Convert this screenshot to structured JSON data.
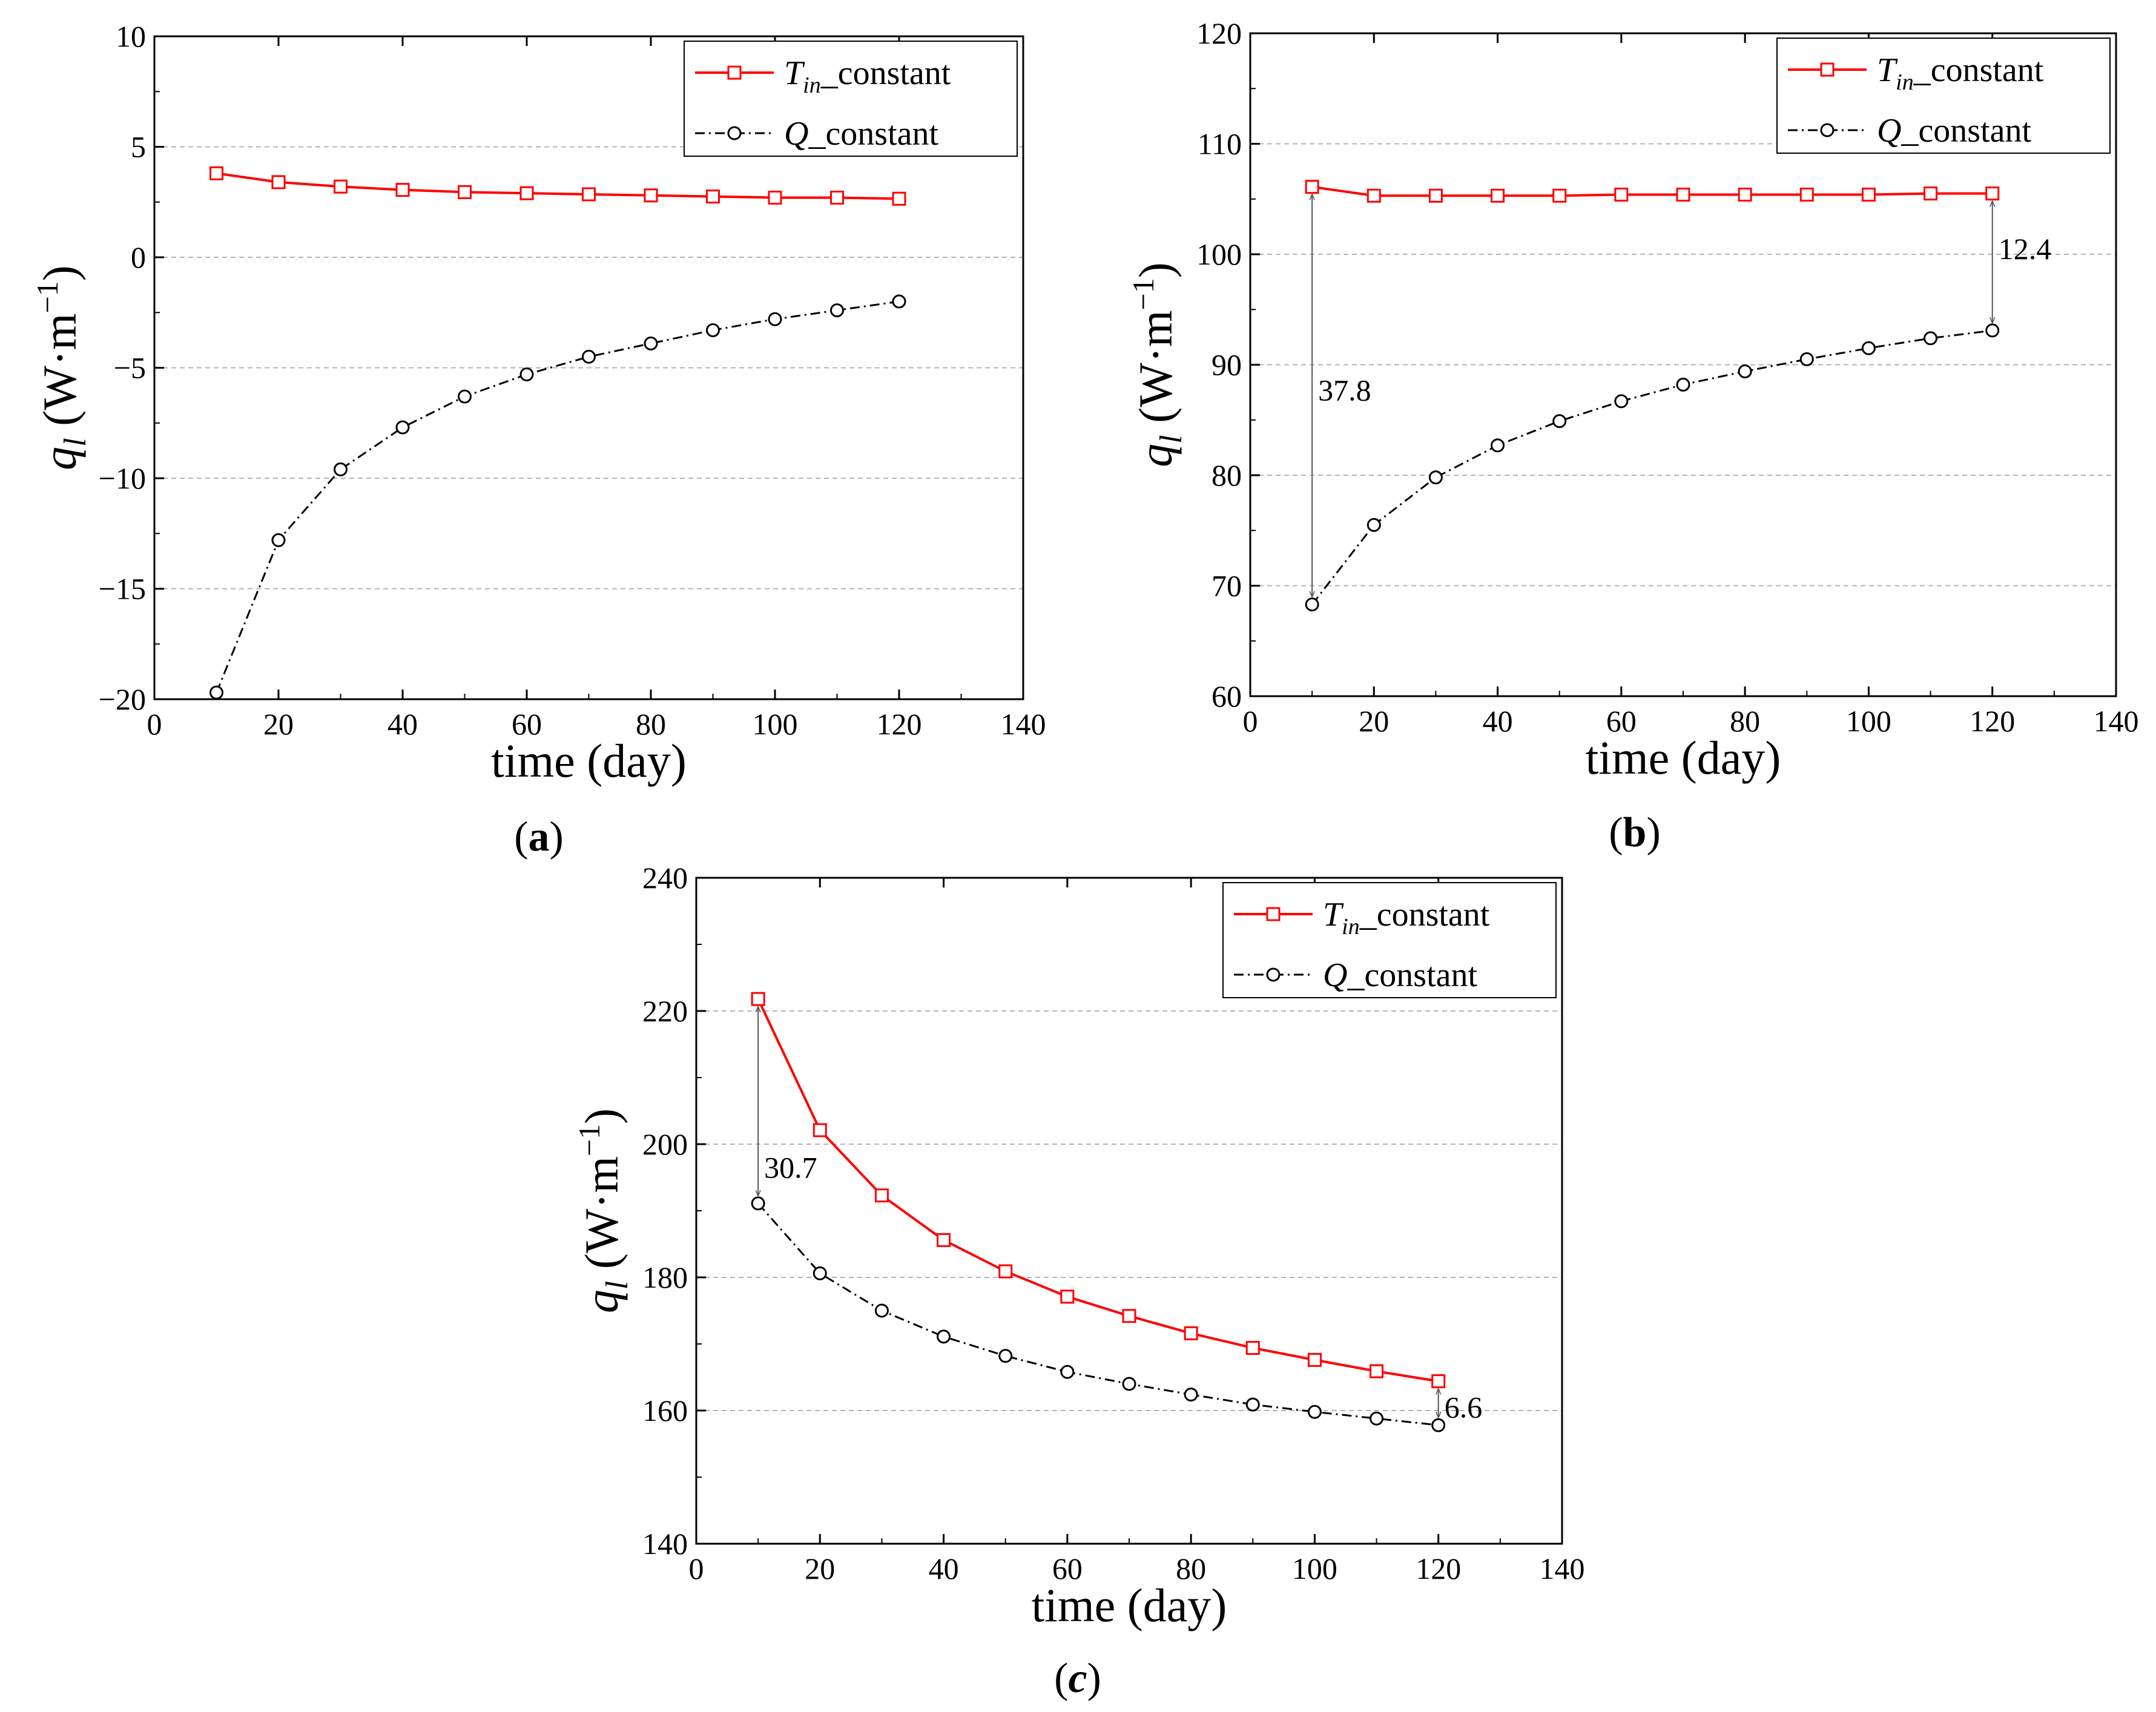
{
  "chart_data": [
    {
      "type": "line",
      "panel": "a",
      "caption": {
        "open": "(",
        "letter": "a",
        "close": ")"
      },
      "xlabel": "time (day)",
      "ylabel": {
        "symbol": "q",
        "subscript": "l",
        "unit": " (W·m",
        "exponent": "−1",
        "close": ")"
      },
      "xlim": [
        0,
        140
      ],
      "ylim": [
        -20,
        10
      ],
      "xticks": [
        0,
        20,
        40,
        60,
        80,
        100,
        120,
        140
      ],
      "yticks": [
        10,
        5,
        0,
        -5,
        -10,
        -15,
        -20
      ],
      "ytick_labels": [
        "10",
        "5",
        "0",
        "−5",
        "−10",
        "−15",
        "−20"
      ],
      "grid": "horizontal dashed",
      "legend_position": "top-right",
      "x": [
        10,
        20,
        30,
        40,
        50,
        60,
        70,
        80,
        90,
        100,
        110,
        120
      ],
      "series": [
        {
          "name": "T_in_constant",
          "label": {
            "italic": "T",
            "subscript": "in",
            "suffix": "_constant"
          },
          "color": "#ff0000",
          "marker": "square",
          "linestyle": "solid",
          "values": [
            3.8,
            3.4,
            3.2,
            3.05,
            2.95,
            2.9,
            2.85,
            2.8,
            2.75,
            2.7,
            2.7,
            2.65
          ]
        },
        {
          "name": "Q_constant",
          "label": {
            "italic": "Q",
            "subscript": "",
            "suffix": "_constant"
          },
          "color": "#000000",
          "marker": "circle",
          "linestyle": "dashdot",
          "values": [
            -19.7,
            -12.8,
            -9.6,
            -7.7,
            -6.3,
            -5.3,
            -4.5,
            -3.9,
            -3.3,
            -2.8,
            -2.4,
            -2.0
          ]
        }
      ],
      "annotations": []
    },
    {
      "type": "line",
      "panel": "b",
      "caption": {
        "open": "(",
        "letter": "b",
        "close": ")"
      },
      "xlabel": "time (day)",
      "ylabel": {
        "symbol": "q",
        "subscript": "l",
        "unit": " (W·m",
        "exponent": "−1",
        "close": ")"
      },
      "xlim": [
        0,
        140
      ],
      "ylim": [
        60,
        120
      ],
      "xticks": [
        0,
        20,
        40,
        60,
        80,
        100,
        120,
        140
      ],
      "yticks": [
        120,
        110,
        100,
        90,
        80,
        70,
        60
      ],
      "ytick_labels": [
        "120",
        "110",
        "100",
        "90",
        "80",
        "70",
        "60"
      ],
      "grid": "horizontal dashed",
      "legend_position": "top-right",
      "x": [
        10,
        20,
        30,
        40,
        50,
        60,
        70,
        80,
        90,
        100,
        110,
        120
      ],
      "series": [
        {
          "name": "T_in_constant",
          "label": {
            "italic": "T",
            "subscript": "in",
            "suffix": "_constant"
          },
          "color": "#ff0000",
          "marker": "square",
          "linestyle": "solid",
          "values": [
            106.1,
            105.3,
            105.3,
            105.3,
            105.3,
            105.4,
            105.4,
            105.4,
            105.4,
            105.4,
            105.5,
            105.5
          ]
        },
        {
          "name": "Q_constant",
          "label": {
            "italic": "Q",
            "subscript": "",
            "suffix": "_constant"
          },
          "color": "#000000",
          "marker": "circle",
          "linestyle": "dashdot",
          "values": [
            68.3,
            75.5,
            79.8,
            82.7,
            84.9,
            86.7,
            88.2,
            89.4,
            90.5,
            91.5,
            92.4,
            93.1
          ]
        }
      ],
      "annotations": [
        {
          "text": "37.8",
          "x": 10,
          "y_top": 106.1,
          "y_bottom": 68.3,
          "label_y": 87.7,
          "side": "right"
        },
        {
          "text": "12.4",
          "x": 120,
          "y_top": 105.5,
          "y_bottom": 93.1,
          "label_y": 100.5,
          "side": "right"
        }
      ]
    },
    {
      "type": "line",
      "panel": "c",
      "caption": {
        "open": "(",
        "letter": "c",
        "close": ")"
      },
      "xlabel": "time (day)",
      "ylabel": {
        "symbol": "q",
        "subscript": "l",
        "unit": " (W·m",
        "exponent": "−1",
        "close": ")"
      },
      "xlim": [
        0,
        140
      ],
      "ylim": [
        140,
        240
      ],
      "xticks": [
        0,
        20,
        40,
        60,
        80,
        100,
        120,
        140
      ],
      "yticks": [
        240,
        220,
        200,
        180,
        160,
        140
      ],
      "ytick_labels": [
        "240",
        "220",
        "200",
        "180",
        "160",
        "140"
      ],
      "grid": "horizontal dashed",
      "legend_position": "top-right",
      "x": [
        10,
        20,
        30,
        40,
        50,
        60,
        70,
        80,
        90,
        100,
        110,
        120
      ],
      "series": [
        {
          "name": "T_in_constant",
          "label": {
            "italic": "T",
            "subscript": "in",
            "suffix": "_constant"
          },
          "color": "#ff0000",
          "marker": "square",
          "linestyle": "solid",
          "values": [
            221.8,
            202.1,
            192.3,
            185.6,
            180.9,
            177.1,
            174.2,
            171.6,
            169.4,
            167.6,
            165.9,
            164.4
          ]
        },
        {
          "name": "Q_constant",
          "label": {
            "italic": "Q",
            "subscript": "",
            "suffix": "_constant"
          },
          "color": "#000000",
          "marker": "circle",
          "linestyle": "dashdot",
          "values": [
            191.1,
            180.6,
            175.0,
            171.1,
            168.2,
            165.8,
            164.0,
            162.4,
            160.9,
            159.8,
            158.8,
            157.8
          ]
        }
      ],
      "annotations": [
        {
          "text": "30.7",
          "x": 10,
          "y_top": 221.8,
          "y_bottom": 191.1,
          "label_y": 196.5,
          "side": "right"
        },
        {
          "text": "6.6",
          "x": 120,
          "y_top": 164.4,
          "y_bottom": 157.8,
          "label_y": 160.5,
          "side": "right"
        }
      ]
    }
  ]
}
